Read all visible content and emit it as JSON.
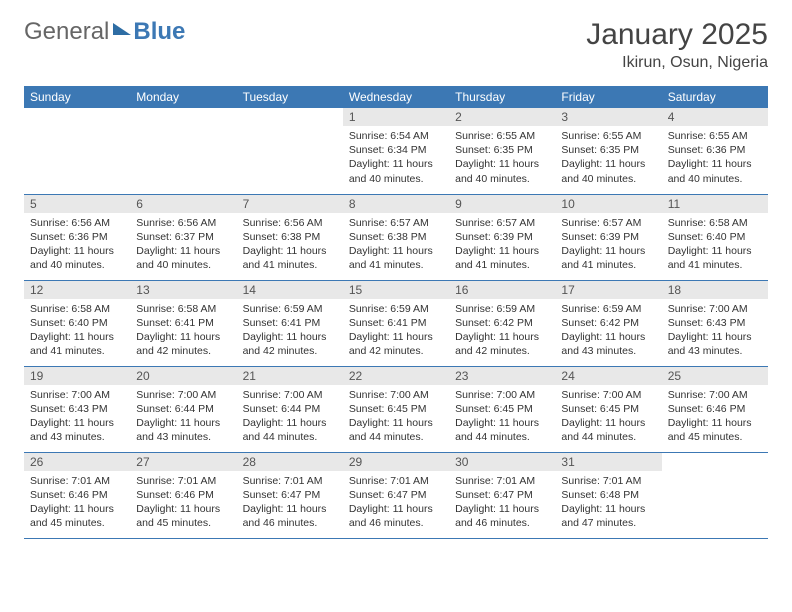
{
  "logo": {
    "part1": "General",
    "part2": "Blue"
  },
  "title": {
    "month": "January 2025",
    "location": "Ikirun, Osun, Nigeria"
  },
  "colors": {
    "header_bg": "#3c78b4",
    "header_fg": "#ffffff",
    "daynum_bg": "#e8e8e8",
    "row_border": "#3c78b4",
    "text": "#333333",
    "background": "#ffffff"
  },
  "calendar": {
    "day_headers": [
      "Sunday",
      "Monday",
      "Tuesday",
      "Wednesday",
      "Thursday",
      "Friday",
      "Saturday"
    ],
    "days": [
      {
        "date": 1,
        "sunrise": "6:54 AM",
        "sunset": "6:34 PM",
        "daylight": "11 hours and 40 minutes."
      },
      {
        "date": 2,
        "sunrise": "6:55 AM",
        "sunset": "6:35 PM",
        "daylight": "11 hours and 40 minutes."
      },
      {
        "date": 3,
        "sunrise": "6:55 AM",
        "sunset": "6:35 PM",
        "daylight": "11 hours and 40 minutes."
      },
      {
        "date": 4,
        "sunrise": "6:55 AM",
        "sunset": "6:36 PM",
        "daylight": "11 hours and 40 minutes."
      },
      {
        "date": 5,
        "sunrise": "6:56 AM",
        "sunset": "6:36 PM",
        "daylight": "11 hours and 40 minutes."
      },
      {
        "date": 6,
        "sunrise": "6:56 AM",
        "sunset": "6:37 PM",
        "daylight": "11 hours and 40 minutes."
      },
      {
        "date": 7,
        "sunrise": "6:56 AM",
        "sunset": "6:38 PM",
        "daylight": "11 hours and 41 minutes."
      },
      {
        "date": 8,
        "sunrise": "6:57 AM",
        "sunset": "6:38 PM",
        "daylight": "11 hours and 41 minutes."
      },
      {
        "date": 9,
        "sunrise": "6:57 AM",
        "sunset": "6:39 PM",
        "daylight": "11 hours and 41 minutes."
      },
      {
        "date": 10,
        "sunrise": "6:57 AM",
        "sunset": "6:39 PM",
        "daylight": "11 hours and 41 minutes."
      },
      {
        "date": 11,
        "sunrise": "6:58 AM",
        "sunset": "6:40 PM",
        "daylight": "11 hours and 41 minutes."
      },
      {
        "date": 12,
        "sunrise": "6:58 AM",
        "sunset": "6:40 PM",
        "daylight": "11 hours and 41 minutes."
      },
      {
        "date": 13,
        "sunrise": "6:58 AM",
        "sunset": "6:41 PM",
        "daylight": "11 hours and 42 minutes."
      },
      {
        "date": 14,
        "sunrise": "6:59 AM",
        "sunset": "6:41 PM",
        "daylight": "11 hours and 42 minutes."
      },
      {
        "date": 15,
        "sunrise": "6:59 AM",
        "sunset": "6:41 PM",
        "daylight": "11 hours and 42 minutes."
      },
      {
        "date": 16,
        "sunrise": "6:59 AM",
        "sunset": "6:42 PM",
        "daylight": "11 hours and 42 minutes."
      },
      {
        "date": 17,
        "sunrise": "6:59 AM",
        "sunset": "6:42 PM",
        "daylight": "11 hours and 43 minutes."
      },
      {
        "date": 18,
        "sunrise": "7:00 AM",
        "sunset": "6:43 PM",
        "daylight": "11 hours and 43 minutes."
      },
      {
        "date": 19,
        "sunrise": "7:00 AM",
        "sunset": "6:43 PM",
        "daylight": "11 hours and 43 minutes."
      },
      {
        "date": 20,
        "sunrise": "7:00 AM",
        "sunset": "6:44 PM",
        "daylight": "11 hours and 43 minutes."
      },
      {
        "date": 21,
        "sunrise": "7:00 AM",
        "sunset": "6:44 PM",
        "daylight": "11 hours and 44 minutes."
      },
      {
        "date": 22,
        "sunrise": "7:00 AM",
        "sunset": "6:45 PM",
        "daylight": "11 hours and 44 minutes."
      },
      {
        "date": 23,
        "sunrise": "7:00 AM",
        "sunset": "6:45 PM",
        "daylight": "11 hours and 44 minutes."
      },
      {
        "date": 24,
        "sunrise": "7:00 AM",
        "sunset": "6:45 PM",
        "daylight": "11 hours and 44 minutes."
      },
      {
        "date": 25,
        "sunrise": "7:00 AM",
        "sunset": "6:46 PM",
        "daylight": "11 hours and 45 minutes."
      },
      {
        "date": 26,
        "sunrise": "7:01 AM",
        "sunset": "6:46 PM",
        "daylight": "11 hours and 45 minutes."
      },
      {
        "date": 27,
        "sunrise": "7:01 AM",
        "sunset": "6:46 PM",
        "daylight": "11 hours and 45 minutes."
      },
      {
        "date": 28,
        "sunrise": "7:01 AM",
        "sunset": "6:47 PM",
        "daylight": "11 hours and 46 minutes."
      },
      {
        "date": 29,
        "sunrise": "7:01 AM",
        "sunset": "6:47 PM",
        "daylight": "11 hours and 46 minutes."
      },
      {
        "date": 30,
        "sunrise": "7:01 AM",
        "sunset": "6:47 PM",
        "daylight": "11 hours and 46 minutes."
      },
      {
        "date": 31,
        "sunrise": "7:01 AM",
        "sunset": "6:48 PM",
        "daylight": "11 hours and 47 minutes."
      }
    ],
    "first_day_column": 3,
    "labels": {
      "sunrise": "Sunrise:",
      "sunset": "Sunset:",
      "daylight": "Daylight:"
    }
  },
  "typography": {
    "title_fontsize": 30,
    "location_fontsize": 16,
    "header_fontsize": 12,
    "body_fontsize": 10.5
  }
}
